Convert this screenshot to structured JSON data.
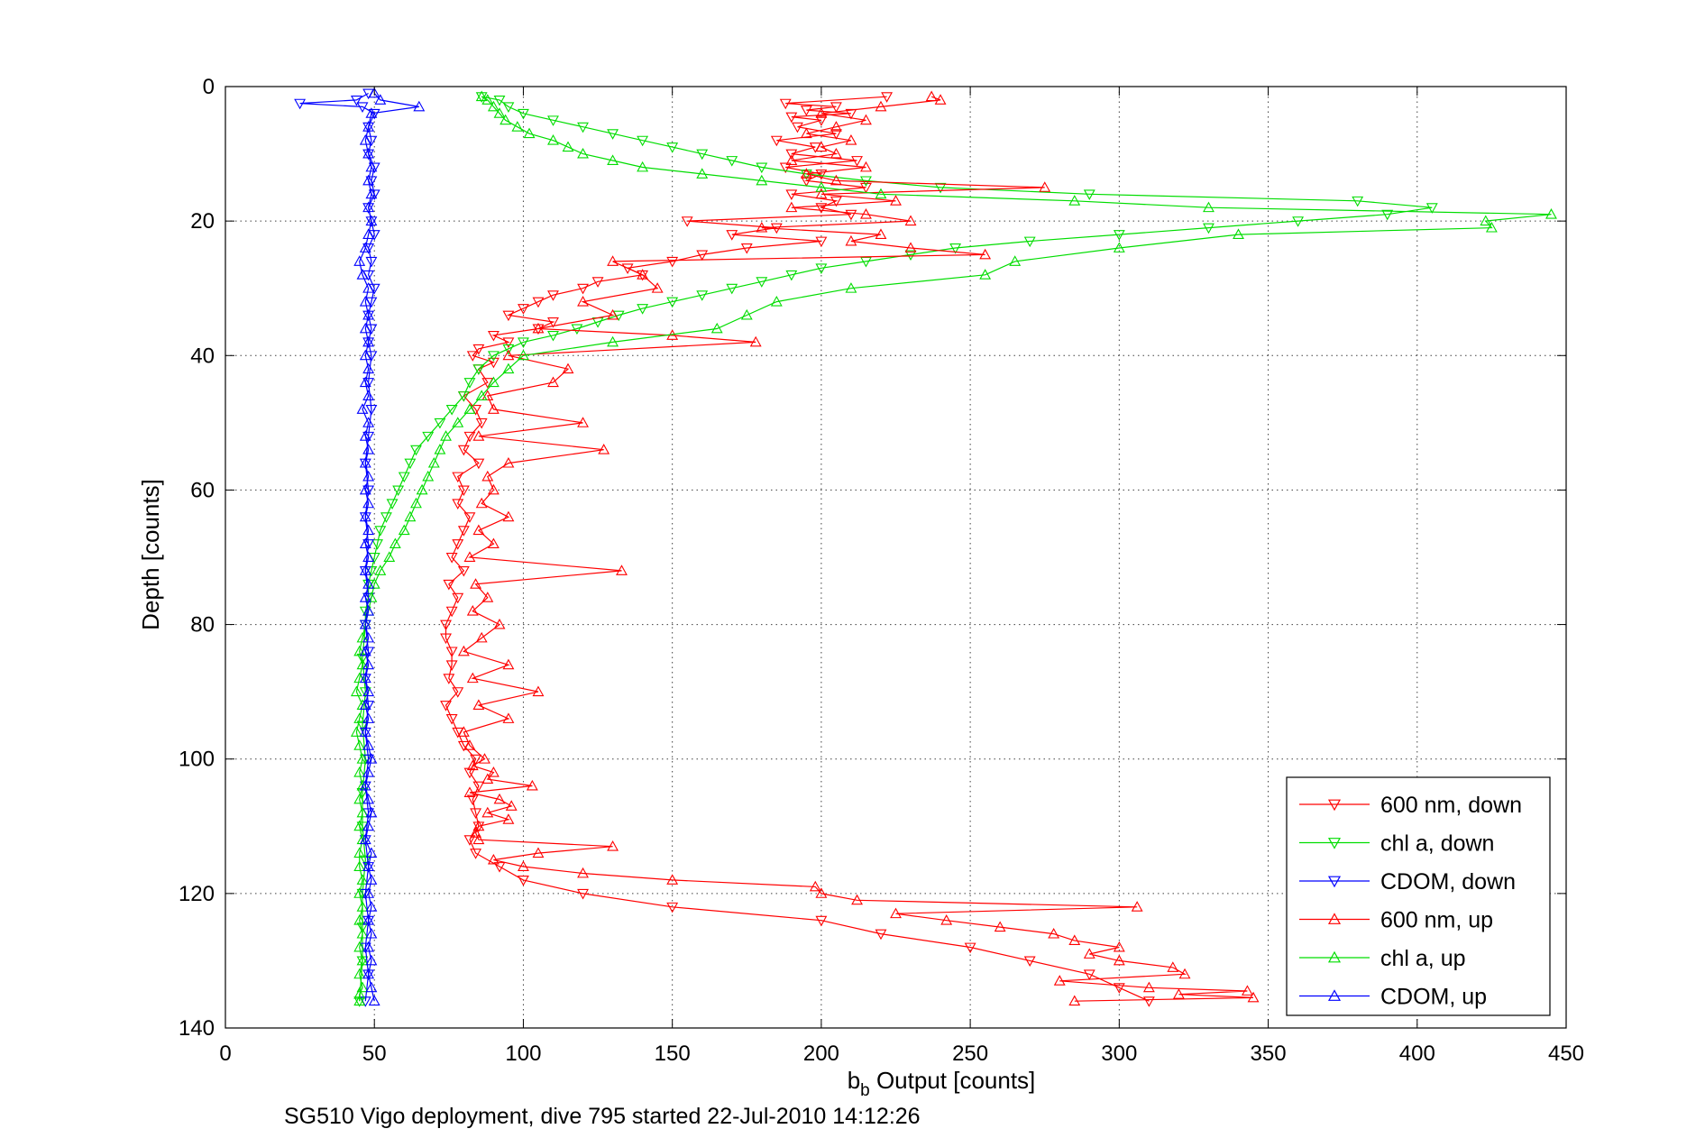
{
  "chart_data": {
    "type": "line",
    "title": "",
    "xlabel_main": "b",
    "xlabel_sub": "b",
    "xlabel_rest": " Output [counts]",
    "ylabel": "Depth [counts]",
    "caption": "SG510 Vigo deployment, dive 795 started 22-Jul-2010 14:12:26",
    "xlim": [
      0,
      450
    ],
    "ylim": [
      0,
      140
    ],
    "y_reversed": true,
    "grid": true,
    "legend_position": "bottom-right",
    "x_ticks": [
      0,
      50,
      100,
      150,
      200,
      250,
      300,
      350,
      400,
      450
    ],
    "x_tick_labels": [
      "0",
      "50",
      "100",
      "150",
      "200",
      "250",
      "300",
      "350",
      "400",
      "450"
    ],
    "y_ticks": [
      0,
      20,
      40,
      60,
      80,
      100,
      120,
      140
    ],
    "y_tick_labels": [
      "0",
      "20",
      "40",
      "60",
      "80",
      "100",
      "120",
      "140"
    ],
    "colors": {
      "red": "#ff0000",
      "green": "#00dd00",
      "blue": "#0000ff"
    },
    "series": [
      {
        "name": "600 nm, down",
        "color": "#ff0000",
        "marker": "triangle-down",
        "depth": [
          1.5,
          2.5,
          3.0,
          3.5,
          4.0,
          4.5,
          5,
          6,
          7,
          8,
          9,
          10,
          11,
          12,
          13,
          14,
          15,
          16,
          17,
          18,
          19,
          20,
          21,
          22,
          23,
          24,
          25,
          26,
          27,
          28,
          29,
          30,
          31,
          32,
          33,
          34,
          35,
          36,
          37,
          38,
          39,
          40,
          41,
          42,
          44,
          46,
          48,
          50,
          52,
          54,
          56,
          58,
          60,
          62,
          64,
          66,
          68,
          70,
          72,
          74,
          76,
          78,
          80,
          82,
          84,
          86,
          88,
          90,
          92,
          94,
          96,
          98,
          100,
          102,
          104,
          106,
          108,
          110,
          112,
          114,
          116,
          118,
          120,
          122,
          124,
          126,
          128,
          130,
          132,
          134,
          136
        ],
        "x": [
          222,
          188,
          205,
          195,
          210,
          190,
          200,
          192,
          205,
          185,
          198,
          190,
          212,
          188,
          200,
          195,
          215,
          190,
          205,
          200,
          210,
          155,
          185,
          170,
          200,
          175,
          160,
          150,
          135,
          140,
          125,
          120,
          110,
          105,
          100,
          95,
          110,
          105,
          90,
          95,
          85,
          83,
          90,
          85,
          88,
          80,
          84,
          86,
          82,
          80,
          85,
          78,
          80,
          78,
          82,
          80,
          78,
          76,
          80,
          75,
          78,
          76,
          74,
          74,
          76,
          76,
          75,
          78,
          74,
          76,
          78,
          80,
          84,
          82,
          85,
          83,
          84,
          85,
          82,
          84,
          92,
          100,
          120,
          150,
          200,
          220,
          250,
          270,
          290,
          300,
          310
        ]
      },
      {
        "name": "chl a, down",
        "color": "#00dd00",
        "marker": "triangle-down",
        "depth": [
          1.5,
          2,
          3,
          4,
          5,
          6,
          7,
          8,
          9,
          10,
          11,
          12,
          13,
          14,
          15,
          16,
          17,
          18,
          19,
          20,
          21,
          22,
          23,
          24,
          25,
          26,
          27,
          28,
          29,
          30,
          31,
          32,
          33,
          34,
          35,
          36,
          37,
          38,
          39,
          40,
          42,
          44,
          46,
          48,
          50,
          52,
          54,
          56,
          58,
          60,
          62,
          64,
          66,
          68,
          70,
          72,
          74,
          76,
          78,
          80,
          85,
          90,
          95,
          100,
          105,
          110,
          115,
          120,
          125,
          130,
          136
        ],
        "x": [
          86,
          92,
          95,
          100,
          110,
          120,
          130,
          140,
          150,
          160,
          170,
          180,
          195,
          215,
          240,
          290,
          380,
          405,
          390,
          360,
          330,
          300,
          270,
          245,
          230,
          215,
          200,
          190,
          180,
          170,
          160,
          150,
          140,
          132,
          125,
          118,
          110,
          100,
          95,
          90,
          85,
          82,
          80,
          76,
          72,
          68,
          64,
          62,
          60,
          58,
          56,
          54,
          52,
          51,
          50,
          49,
          48,
          48,
          47,
          47,
          46,
          47,
          46,
          47,
          46,
          46,
          47,
          46,
          46,
          46,
          45
        ]
      },
      {
        "name": "CDOM, down",
        "color": "#0000ff",
        "marker": "triangle-down",
        "depth": [
          1,
          2,
          2.5,
          3,
          4,
          6,
          8,
          10,
          12,
          14,
          16,
          18,
          20,
          22,
          24,
          26,
          28,
          30,
          32,
          34,
          36,
          38,
          40,
          44,
          48,
          52,
          56,
          60,
          64,
          68,
          72,
          76,
          80,
          84,
          88,
          92,
          96,
          100,
          104,
          108,
          112,
          116,
          120,
          124,
          128,
          132,
          136
        ],
        "x": [
          48,
          44,
          25,
          46,
          50,
          48,
          49,
          48,
          50,
          49,
          50,
          48,
          49,
          50,
          48,
          49,
          48,
          50,
          49,
          48,
          49,
          48,
          49,
          48,
          49,
          48,
          47,
          48,
          47,
          48,
          47,
          48,
          47,
          48,
          47,
          48,
          47,
          48,
          47,
          48,
          47,
          48,
          47,
          48,
          47,
          48,
          47
        ]
      },
      {
        "name": "600 nm, up",
        "color": "#ff0000",
        "marker": "triangle-up",
        "depth": [
          136,
          135.5,
          135,
          134.5,
          134,
          133,
          132,
          131,
          130,
          129,
          128,
          127,
          126,
          125,
          124,
          123,
          122,
          121,
          120,
          119,
          118,
          117,
          116,
          115,
          114,
          113,
          112,
          111,
          110,
          109,
          108,
          107,
          106,
          105,
          104,
          103,
          102,
          101,
          100,
          98,
          96,
          94,
          92,
          90,
          88,
          86,
          84,
          82,
          80,
          78,
          76,
          74,
          72,
          70,
          68,
          66,
          64,
          62,
          60,
          58,
          56,
          54,
          52,
          50,
          48,
          46,
          44,
          42,
          40,
          38,
          37,
          36,
          34,
          32,
          30,
          28,
          26,
          25,
          24,
          23,
          22,
          21,
          20,
          19,
          18,
          17,
          16,
          15,
          14,
          13,
          12,
          11,
          10,
          9,
          8,
          7,
          6,
          5,
          4,
          3,
          2,
          1.5
        ],
        "x": [
          285,
          345,
          320,
          343,
          310,
          280,
          322,
          318,
          300,
          290,
          300,
          285,
          278,
          260,
          242,
          225,
          306,
          212,
          200,
          198,
          150,
          120,
          100,
          90,
          105,
          130,
          85,
          84,
          85,
          95,
          88,
          96,
          92,
          82,
          103,
          88,
          90,
          83,
          87,
          82,
          80,
          95,
          85,
          105,
          83,
          95,
          80,
          86,
          92,
          83,
          88,
          84,
          133,
          82,
          90,
          85,
          95,
          86,
          90,
          88,
          95,
          127,
          85,
          120,
          90,
          88,
          110,
          115,
          95,
          178,
          150,
          105,
          130,
          120,
          145,
          140,
          130,
          255,
          230,
          210,
          220,
          180,
          230,
          215,
          190,
          225,
          200,
          275,
          205,
          195,
          215,
          190,
          205,
          200,
          210,
          195,
          205,
          215,
          200,
          220,
          240,
          237
        ]
      },
      {
        "name": "chl a, up",
        "color": "#00dd00",
        "marker": "triangle-up",
        "depth": [
          136,
          135,
          134,
          132,
          130,
          128,
          126,
          124,
          122,
          120,
          118,
          116,
          114,
          112,
          110,
          108,
          106,
          104,
          102,
          100,
          98,
          96,
          94,
          92,
          90,
          88,
          86,
          84,
          82,
          80,
          78,
          76,
          74,
          72,
          70,
          68,
          66,
          64,
          62,
          60,
          58,
          56,
          54,
          52,
          50,
          48,
          46,
          44,
          42,
          40,
          38,
          36,
          34,
          32,
          30,
          28,
          26,
          24,
          22,
          21,
          20,
          19,
          18,
          17,
          16,
          15,
          14,
          13,
          12,
          11,
          10,
          9,
          8,
          7,
          6,
          5,
          4,
          3,
          2,
          1.5
        ],
        "x": [
          45,
          45,
          46,
          45,
          46,
          45,
          46,
          45,
          46,
          45,
          46,
          45,
          45,
          46,
          45,
          46,
          45,
          46,
          45,
          46,
          45,
          44,
          45,
          46,
          44,
          45,
          46,
          45,
          46,
          47,
          48,
          49,
          50,
          52,
          55,
          57,
          60,
          62,
          64,
          66,
          68,
          70,
          72,
          74,
          78,
          82,
          86,
          90,
          95,
          100,
          130,
          165,
          175,
          185,
          210,
          255,
          265,
          300,
          340,
          425,
          423,
          445,
          330,
          285,
          220,
          200,
          180,
          160,
          140,
          130,
          120,
          115,
          110,
          102,
          98,
          94,
          92,
          90,
          88,
          86
        ]
      },
      {
        "name": "CDOM, up",
        "color": "#0000ff",
        "marker": "triangle-up",
        "depth": [
          136,
          134,
          132,
          130,
          128,
          126,
          124,
          122,
          120,
          118,
          116,
          114,
          112,
          110,
          108,
          106,
          104,
          102,
          100,
          98,
          96,
          94,
          92,
          90,
          88,
          86,
          84,
          82,
          80,
          78,
          76,
          74,
          72,
          70,
          68,
          66,
          64,
          62,
          60,
          58,
          56,
          54,
          52,
          50,
          48,
          46,
          44,
          42,
          40,
          38,
          36,
          34,
          32,
          30,
          28,
          26,
          24,
          22,
          20,
          18,
          16,
          14,
          12,
          10,
          8,
          6,
          4,
          3,
          2,
          1
        ],
        "x": [
          50,
          49,
          48,
          49,
          48,
          49,
          48,
          49,
          48,
          49,
          48,
          49,
          47,
          48,
          49,
          48,
          47,
          48,
          49,
          48,
          47,
          48,
          47,
          48,
          47,
          48,
          47,
          48,
          47,
          48,
          47,
          48,
          47,
          48,
          47,
          48,
          47,
          48,
          47,
          48,
          47,
          48,
          47,
          48,
          46,
          48,
          47,
          48,
          47,
          48,
          47,
          48,
          47,
          48,
          46,
          45,
          47,
          48,
          49,
          48,
          49,
          48,
          49,
          48,
          47,
          48,
          49,
          65,
          52,
          50
        ]
      }
    ]
  }
}
